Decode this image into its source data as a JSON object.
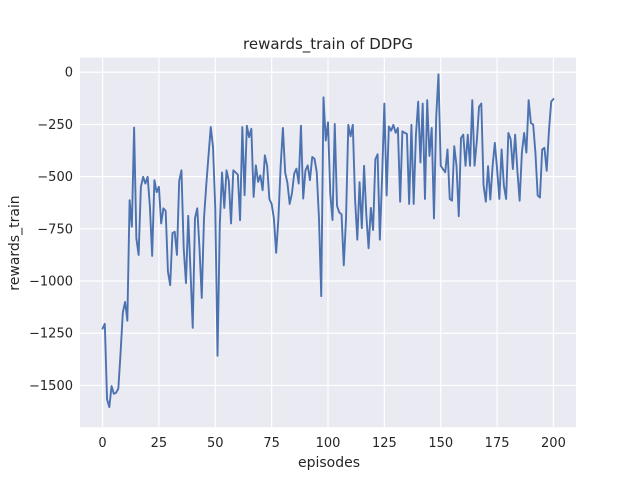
{
  "figure": {
    "background": "#ffffff"
  },
  "chart_data": {
    "type": "line",
    "title": "rewards_train of DDPG",
    "xlabel": "episodes",
    "ylabel": "rewards_train",
    "grid": true,
    "legend": false,
    "xlim": [
      -10,
      210
    ],
    "ylim": [
      -1700,
      70
    ],
    "xticks": [
      0,
      25,
      50,
      75,
      100,
      125,
      150,
      175,
      200
    ],
    "yticks": [
      0,
      -250,
      -500,
      -750,
      -1000,
      -1250,
      -1500
    ],
    "style": {
      "axes_background": "#EAEAF2",
      "grid_color": "#FFFFFF",
      "line_color": "#4C72B0",
      "text_color": "#262626",
      "figure_background": "#FFFFFF"
    },
    "series": [
      {
        "name": "rewards_train",
        "x_start": 0,
        "x_step": 1,
        "values": [
          -1228,
          -1205,
          -1566,
          -1604,
          -1503,
          -1540,
          -1535,
          -1515,
          -1344,
          -1150,
          -1100,
          -1190,
          -613,
          -740,
          -265,
          -795,
          -875,
          -550,
          -501,
          -533,
          -501,
          -643,
          -880,
          -517,
          -574,
          -549,
          -724,
          -652,
          -664,
          -954,
          -1020,
          -771,
          -764,
          -875,
          -520,
          -470,
          -843,
          -1010,
          -688,
          -950,
          -1224,
          -700,
          -652,
          -843,
          -1081,
          -700,
          -541,
          -400,
          -263,
          -359,
          -652,
          -1358,
          -732,
          -480,
          -650,
          -470,
          -520,
          -724,
          -470,
          -480,
          -490,
          -709,
          -263,
          -589,
          -256,
          -311,
          -271,
          -597,
          -446,
          -525,
          -494,
          -565,
          -398,
          -448,
          -607,
          -631,
          -700,
          -865,
          -700,
          -450,
          -267,
          -480,
          -530,
          -631,
          -581,
          -486,
          -462,
          -533,
          -256,
          -605,
          -470,
          -446,
          -517,
          -406,
          -414,
          -478,
          -700,
          -1072,
          -120,
          -327,
          -240,
          -581,
          -708,
          -248,
          -640,
          -672,
          -680,
          -925,
          -700,
          -252,
          -307,
          -252,
          -607,
          -802,
          -527,
          -747,
          -448,
          -684,
          -843,
          -650,
          -756,
          -417,
          -393,
          -802,
          -500,
          -150,
          -590,
          -260,
          -280,
          -252,
          -290,
          -267,
          -620,
          -283,
          -290,
          -295,
          -631,
          -252,
          -631,
          -300,
          -141,
          -432,
          -150,
          -607,
          -134,
          -401,
          -267,
          -700,
          -212,
          -10,
          -448,
          -464,
          -479,
          -370,
          -607,
          -615,
          -354,
          -448,
          -690,
          -315,
          -299,
          -448,
          -299,
          -448,
          -134,
          -448,
          -330,
          -165,
          -150,
          -542,
          -620,
          -450,
          -610,
          -450,
          -338,
          -464,
          -607,
          -370,
          -542,
          -607,
          -291,
          -320,
          -464,
          -299,
          -472,
          -615,
          -385,
          -291,
          -385,
          -134,
          -244,
          -250,
          -385,
          -590,
          -600,
          -370,
          -362,
          -472,
          -280,
          -141,
          -128
        ]
      }
    ]
  }
}
